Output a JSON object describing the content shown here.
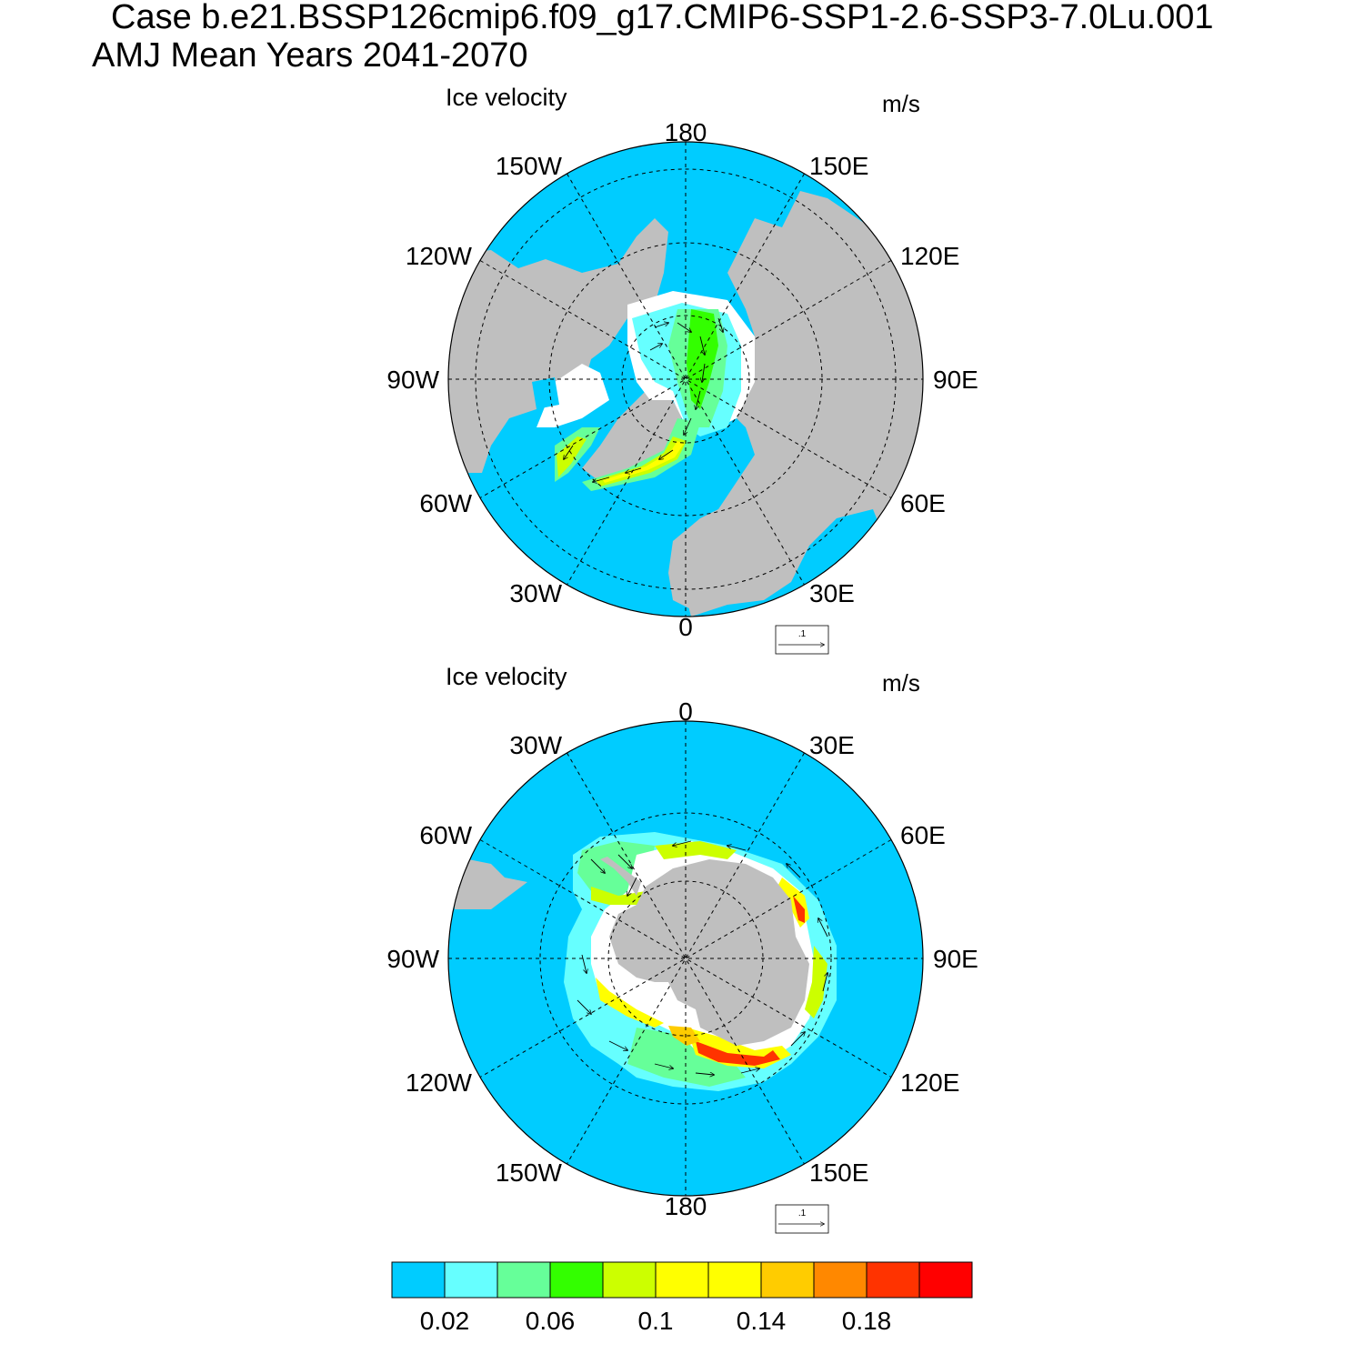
{
  "title": {
    "line1": "Case b.e21.BSSP126cmip6.f09_g17.CMIP6-SSP1-2.6-SSP3-7.0Lu.001",
    "line2": "AMJ Mean   Years 2041-2070"
  },
  "panels": [
    {
      "id": "north",
      "title": "Ice velocity",
      "units": "m/s",
      "lon_labels": [
        "180",
        "150E",
        "120E",
        "90E",
        "60E",
        "30E",
        "0",
        "30W",
        "60W",
        "90W",
        "120W",
        "150W"
      ],
      "ref_vector_label": ".1"
    },
    {
      "id": "south",
      "title": "Ice velocity",
      "units": "m/s",
      "lon_labels": [
        "0",
        "30E",
        "60E",
        "90E",
        "120E",
        "150E",
        "180",
        "150W",
        "120W",
        "90W",
        "60W",
        "30W"
      ],
      "ref_vector_label": ".1"
    }
  ],
  "colorbar": {
    "colors": [
      "#00ccff",
      "#66ffff",
      "#66ff99",
      "#33ff00",
      "#ccff00",
      "#ffff00",
      "#ffff00",
      "#ffcc00",
      "#ff8800",
      "#ff3300",
      "#ff0000"
    ],
    "tick_labels": [
      "0.02",
      "0.06",
      "0.1",
      "0.14",
      "0.18"
    ]
  },
  "colors": {
    "ocean": "#00ccff",
    "land": "#bfbfbf",
    "no_ice": "#ffffff"
  }
}
